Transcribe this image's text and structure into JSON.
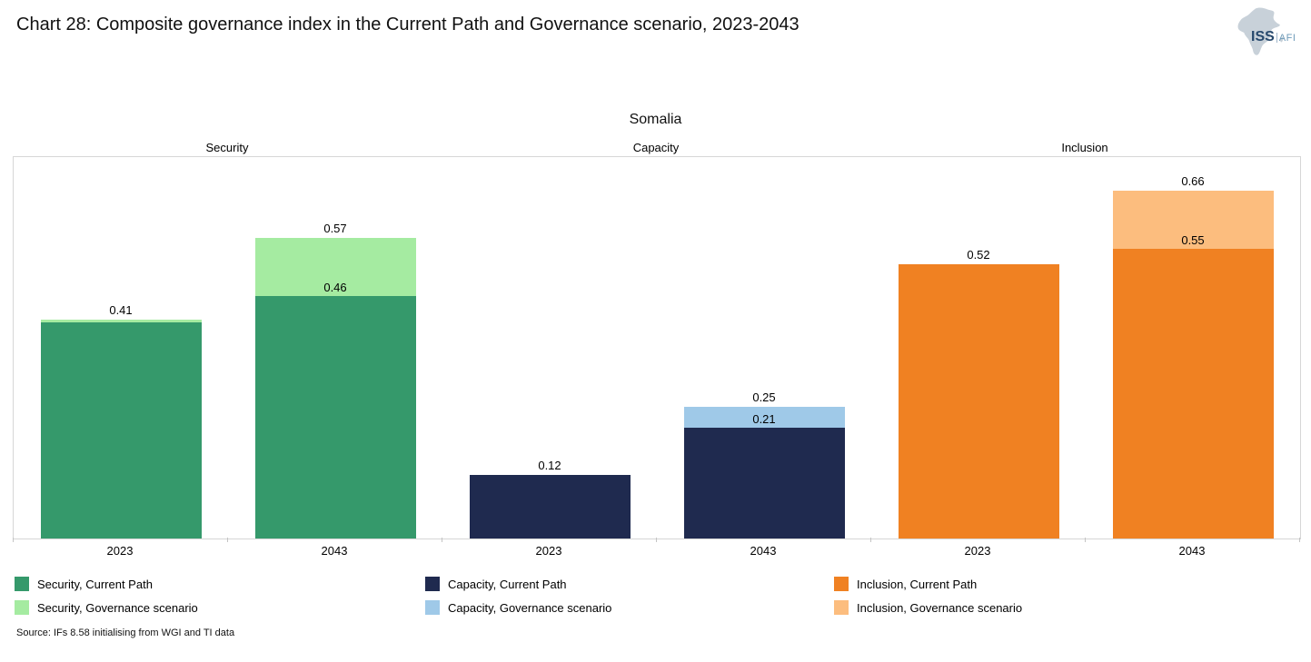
{
  "page": {
    "title": "Chart 28: Composite governance index in the Current Path and Governance scenario, 2023-2043",
    "logo": {
      "iss": "ISS",
      "afi": "AFI"
    },
    "source": "Source: IFs 8.58 initialising from WGI and TI data"
  },
  "chart_data": {
    "type": "bar",
    "title": "Somalia",
    "stacked": true,
    "grid": false,
    "legend_position": "bottom",
    "ylim": [
      0,
      0.72
    ],
    "y_axis_visible": false,
    "groups": [
      "Security",
      "Capacity",
      "Inclusion"
    ],
    "categories": [
      "2023",
      "2043",
      "2023",
      "2043",
      "2023",
      "2043"
    ],
    "series": [
      {
        "name": "Current Path",
        "values": [
          0.41,
          0.46,
          0.12,
          0.21,
          0.52,
          0.55
        ]
      },
      {
        "name": "Governance scenario",
        "values": [
          0.41,
          0.57,
          0.12,
          0.25,
          0.52,
          0.66
        ]
      }
    ],
    "colors": {
      "Security": {
        "current": "#35996B",
        "governance": "#A5EBA1"
      },
      "Capacity": {
        "current": "#1F2A4F",
        "governance": "#9FC9E8"
      },
      "Inclusion": {
        "current": "#F08122",
        "governance": "#FCBD7E"
      }
    },
    "bars": [
      {
        "group": "Security",
        "year": "2023",
        "current_path": 0.41,
        "governance": 0.41,
        "governance_visible": true,
        "top_label": "0.41",
        "inner_label": ""
      },
      {
        "group": "Security",
        "year": "2043",
        "current_path": 0.46,
        "governance": 0.57,
        "governance_visible": true,
        "top_label": "0.57",
        "inner_label": "0.46"
      },
      {
        "group": "Capacity",
        "year": "2023",
        "current_path": 0.12,
        "governance": 0.12,
        "governance_visible": false,
        "top_label": "0.12",
        "inner_label": ""
      },
      {
        "group": "Capacity",
        "year": "2043",
        "current_path": 0.21,
        "governance": 0.25,
        "governance_visible": true,
        "top_label": "0.25",
        "inner_label": "0.21"
      },
      {
        "group": "Inclusion",
        "year": "2023",
        "current_path": 0.52,
        "governance": 0.52,
        "governance_visible": false,
        "top_label": "0.52",
        "inner_label": ""
      },
      {
        "group": "Inclusion",
        "year": "2043",
        "current_path": 0.55,
        "governance": 0.66,
        "governance_visible": true,
        "top_label": "0.66",
        "inner_label": "0.55"
      }
    ]
  },
  "legend": [
    {
      "label": "Security, Current Path",
      "color": "#35996B"
    },
    {
      "label": "Security, Governance scenario",
      "color": "#A5EBA1"
    },
    {
      "label": "Capacity, Current Path",
      "color": "#1F2A4F"
    },
    {
      "label": "Capacity, Governance scenario",
      "color": "#9FC9E8"
    },
    {
      "label": "Inclusion, Current Path",
      "color": "#F08122"
    },
    {
      "label": "Inclusion, Governance scenario",
      "color": "#FCBD7E"
    }
  ]
}
